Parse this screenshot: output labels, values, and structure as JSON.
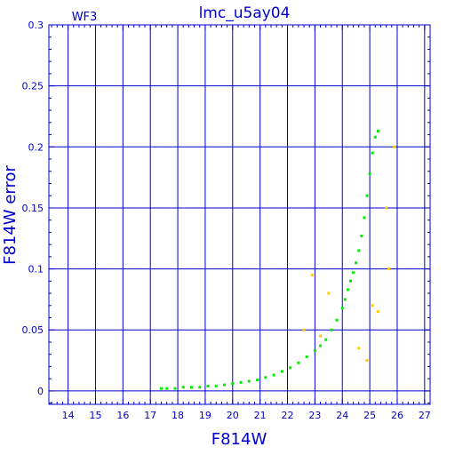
{
  "chart_data": {
    "type": "scatter",
    "title": "lmc_u5ay04",
    "subtitle": "WF3",
    "xlabel": "F814W",
    "ylabel": "F814W error",
    "xlim": [
      13.3,
      27.2
    ],
    "ylim": [
      -0.011,
      0.3
    ],
    "xticks": [
      "14",
      "15",
      "16",
      "17",
      "18",
      "19",
      "20",
      "21",
      "22",
      "23",
      "24",
      "25",
      "26",
      "27"
    ],
    "yticks": [
      "0",
      "0.05",
      "0.1",
      "0.15",
      "0.2",
      "0.25",
      "0.3"
    ],
    "grid": true,
    "colors": {
      "frame": "#0000cc",
      "grid": "#0000cc",
      "text": "#0000cc",
      "main_series": "#00ee00",
      "outliers": "#ffcc00",
      "background": "#ffffff"
    },
    "series": [
      {
        "color": "#00ee00",
        "points": [
          [
            17.4,
            0.002
          ],
          [
            17.6,
            0.002
          ],
          [
            17.9,
            0.002
          ],
          [
            18.2,
            0.003
          ],
          [
            18.5,
            0.003
          ],
          [
            18.8,
            0.003
          ],
          [
            19.1,
            0.004
          ],
          [
            19.4,
            0.004
          ],
          [
            19.7,
            0.005
          ],
          [
            20.0,
            0.006
          ],
          [
            20.3,
            0.007
          ],
          [
            20.6,
            0.008
          ],
          [
            20.9,
            0.009
          ],
          [
            21.2,
            0.011
          ],
          [
            21.5,
            0.013
          ],
          [
            21.8,
            0.016
          ],
          [
            22.1,
            0.019
          ],
          [
            22.4,
            0.023
          ],
          [
            22.7,
            0.028
          ],
          [
            23.0,
            0.033
          ],
          [
            23.2,
            0.037
          ],
          [
            23.4,
            0.042
          ],
          [
            23.6,
            0.05
          ],
          [
            23.8,
            0.058
          ],
          [
            24.0,
            0.068
          ],
          [
            24.1,
            0.075
          ],
          [
            24.2,
            0.083
          ],
          [
            24.3,
            0.09
          ],
          [
            24.4,
            0.097
          ],
          [
            24.5,
            0.105
          ],
          [
            24.6,
            0.115
          ],
          [
            24.7,
            0.127
          ],
          [
            24.8,
            0.142
          ],
          [
            24.9,
            0.16
          ],
          [
            25.0,
            0.178
          ],
          [
            25.1,
            0.195
          ],
          [
            25.2,
            0.208
          ],
          [
            25.3,
            0.213
          ]
        ]
      },
      {
        "color": "#ffcc00",
        "points": [
          [
            22.9,
            0.095
          ],
          [
            23.5,
            0.08
          ],
          [
            24.6,
            0.035
          ],
          [
            24.9,
            0.025
          ],
          [
            25.1,
            0.07
          ],
          [
            25.3,
            0.065
          ],
          [
            25.6,
            0.15
          ],
          [
            25.7,
            0.1
          ],
          [
            25.9,
            0.2
          ],
          [
            23.2,
            0.045
          ],
          [
            22.6,
            0.05
          ]
        ]
      }
    ]
  }
}
